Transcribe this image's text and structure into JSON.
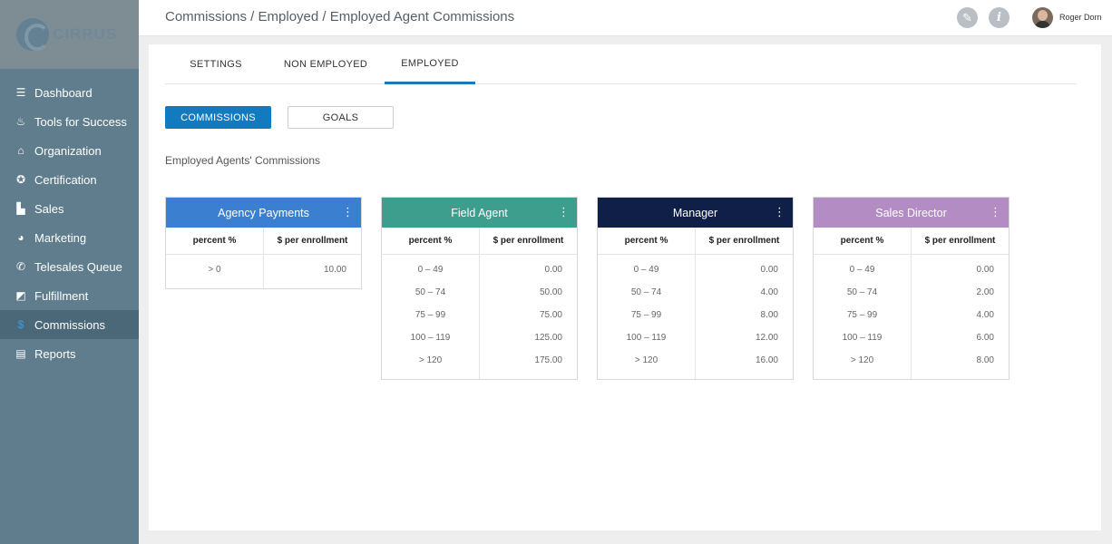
{
  "sidebar": {
    "logo_text": "CIRRUS",
    "items": [
      {
        "label": "Dashboard",
        "icon": "list-icon"
      },
      {
        "label": "Tools for Success",
        "icon": "flame-icon"
      },
      {
        "label": "Organization",
        "icon": "home-icon"
      },
      {
        "label": "Certification",
        "icon": "award-icon"
      },
      {
        "label": "Sales",
        "icon": "cart-icon"
      },
      {
        "label": "Marketing",
        "icon": "pie-chart-icon"
      },
      {
        "label": "Telesales Queue",
        "icon": "phone-icon"
      },
      {
        "label": "Fulfillment",
        "icon": "send-icon"
      },
      {
        "label": "Commissions",
        "icon": "dollar-icon",
        "active": true
      },
      {
        "label": "Reports",
        "icon": "clipboard-icon"
      }
    ]
  },
  "header": {
    "breadcrumb": "Commissions / Employed / Employed Agent Commissions",
    "user_name": "Roger Dorn",
    "icons": [
      "wrench-icon",
      "info-icon"
    ]
  },
  "tabs": [
    {
      "label": "SETTINGS"
    },
    {
      "label": "NON EMPLOYED"
    },
    {
      "label": "EMPLOYED",
      "active": true
    }
  ],
  "buttons": {
    "commissions": "COMMISSIONS",
    "goals": "GOALS"
  },
  "section_title": "Employed Agents' Commissions",
  "colors": {
    "agency": "#3b7fd1",
    "field": "#3d9e8e",
    "manager": "#0f1f48",
    "director": "#b48cc4",
    "accent": "#127bc0"
  },
  "cards": [
    {
      "title": "Agency Payments",
      "col1": "percent %",
      "col2": "$ per enrollment",
      "percent": [
        "> 0"
      ],
      "amount": [
        "10.00"
      ]
    },
    {
      "title": "Field Agent",
      "col1": "percent %",
      "col2": "$ per enrollment",
      "percent": [
        "0 – 49",
        "50 – 74",
        "75 – 99",
        "100 – 119",
        "> 120"
      ],
      "amount": [
        "0.00",
        "50.00",
        "75.00",
        "125.00",
        "175.00"
      ]
    },
    {
      "title": "Manager",
      "col1": "percent %",
      "col2": "$ per enrollment",
      "percent": [
        "0 – 49",
        "50 – 74",
        "75 – 99",
        "100 – 119",
        "> 120"
      ],
      "amount": [
        "0.00",
        "4.00",
        "8.00",
        "12.00",
        "16.00"
      ]
    },
    {
      "title": "Sales Director",
      "col1": "percent %",
      "col2": "$ per enrollment",
      "percent": [
        "0 – 49",
        "50 – 74",
        "75 – 99",
        "100 – 119",
        "> 120"
      ],
      "amount": [
        "0.00",
        "2.00",
        "4.00",
        "6.00",
        "8.00"
      ]
    }
  ]
}
